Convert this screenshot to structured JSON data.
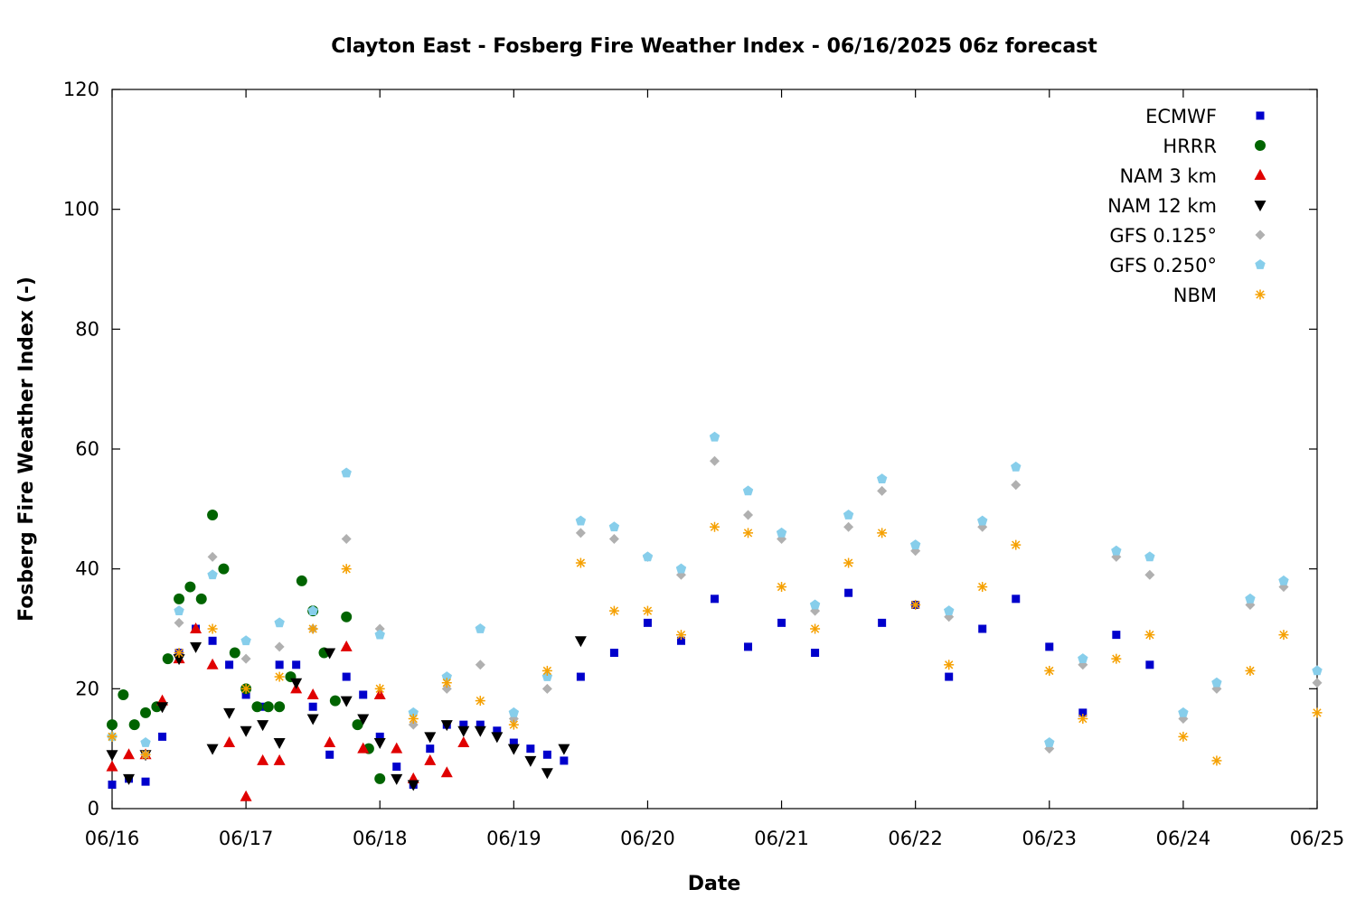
{
  "chart_data": {
    "type": "scatter",
    "title": "Clayton East - Fosberg Fire Weather Index - 06/16/2025 06z forecast",
    "xlabel": "Date",
    "ylabel": "Fosberg Fire Weather Index (-)",
    "xlim": [
      "2025-06-16T00:00",
      "2025-06-25T00:00"
    ],
    "ylim": [
      0,
      120
    ],
    "x_ticks": [
      "06/16",
      "06/17",
      "06/18",
      "06/19",
      "06/20",
      "06/21",
      "06/22",
      "06/23",
      "06/24",
      "06/25"
    ],
    "y_ticks": [
      0,
      20,
      40,
      60,
      80,
      100,
      120
    ],
    "grid": false,
    "legend_position": "top-right",
    "series": [
      {
        "name": "ECMWF",
        "marker": "square",
        "color": "#0000cc",
        "x": [
          "06/16 00:00",
          "06/16 03:00",
          "06/16 06:00",
          "06/16 09:00",
          "06/16 12:00",
          "06/16 15:00",
          "06/16 18:00",
          "06/16 21:00",
          "06/17 00:00",
          "06/17 03:00",
          "06/17 06:00",
          "06/17 09:00",
          "06/17 12:00",
          "06/17 15:00",
          "06/17 18:00",
          "06/17 21:00",
          "06/18 00:00",
          "06/18 03:00",
          "06/18 06:00",
          "06/18 09:00",
          "06/18 12:00",
          "06/18 15:00",
          "06/18 18:00",
          "06/18 21:00",
          "06/19 00:00",
          "06/19 03:00",
          "06/19 06:00",
          "06/19 09:00",
          "06/19 12:00",
          "06/19 18:00",
          "06/20 00:00",
          "06/20 06:00",
          "06/20 12:00",
          "06/20 18:00",
          "06/21 00:00",
          "06/21 06:00",
          "06/21 12:00",
          "06/21 18:00",
          "06/22 00:00",
          "06/22 06:00",
          "06/22 12:00",
          "06/22 18:00",
          "06/23 00:00",
          "06/23 06:00",
          "06/23 12:00",
          "06/23 18:00"
        ],
        "y": [
          4,
          5,
          4.5,
          12,
          26,
          30,
          28,
          24,
          19,
          17,
          24,
          24,
          17,
          9,
          22,
          19,
          12,
          7,
          4,
          10,
          14,
          14,
          14,
          13,
          11,
          10,
          9,
          8,
          22,
          26,
          31,
          28,
          35,
          27,
          31,
          26,
          36,
          31,
          34,
          22,
          30,
          35,
          27,
          16,
          29,
          24
        ]
      },
      {
        "name": "HRRR",
        "marker": "circle",
        "color": "#006400",
        "x": [
          "06/16 00:00",
          "06/16 02:00",
          "06/16 04:00",
          "06/16 06:00",
          "06/16 08:00",
          "06/16 10:00",
          "06/16 12:00",
          "06/16 14:00",
          "06/16 16:00",
          "06/16 18:00",
          "06/16 20:00",
          "06/16 22:00",
          "06/17 00:00",
          "06/17 02:00",
          "06/17 04:00",
          "06/17 06:00",
          "06/17 08:00",
          "06/17 10:00",
          "06/17 12:00",
          "06/17 14:00",
          "06/17 16:00",
          "06/17 18:00",
          "06/17 20:00",
          "06/17 22:00",
          "06/18 00:00"
        ],
        "y": [
          14,
          19,
          14,
          16,
          17,
          25,
          35,
          37,
          35,
          49,
          40,
          26,
          20,
          17,
          17,
          17,
          22,
          38,
          33,
          26,
          18,
          32,
          14,
          10,
          5
        ]
      },
      {
        "name": "NAM 3 km",
        "marker": "triangle-up",
        "color": "#e00000",
        "x": [
          "06/16 00:00",
          "06/16 03:00",
          "06/16 06:00",
          "06/16 09:00",
          "06/16 12:00",
          "06/16 15:00",
          "06/16 18:00",
          "06/16 21:00",
          "06/17 00:00",
          "06/17 03:00",
          "06/17 06:00",
          "06/17 09:00",
          "06/17 12:00",
          "06/17 15:00",
          "06/17 18:00",
          "06/17 21:00",
          "06/18 00:00",
          "06/18 03:00",
          "06/18 06:00",
          "06/18 09:00",
          "06/18 12:00",
          "06/18 15:00"
        ],
        "y": [
          7,
          9,
          9,
          18,
          25,
          30,
          24,
          11,
          2,
          8,
          8,
          20,
          19,
          11,
          27,
          10,
          19,
          10,
          5,
          8,
          6,
          11
        ]
      },
      {
        "name": "NAM 12 km",
        "marker": "triangle-down",
        "color": "#000000",
        "x": [
          "06/16 00:00",
          "06/16 03:00",
          "06/16 06:00",
          "06/16 09:00",
          "06/16 12:00",
          "06/16 15:00",
          "06/16 18:00",
          "06/16 21:00",
          "06/17 00:00",
          "06/17 03:00",
          "06/17 06:00",
          "06/17 09:00",
          "06/17 12:00",
          "06/17 15:00",
          "06/17 18:00",
          "06/17 21:00",
          "06/18 00:00",
          "06/18 03:00",
          "06/18 06:00",
          "06/18 09:00",
          "06/18 12:00",
          "06/18 15:00",
          "06/18 18:00",
          "06/18 21:00",
          "06/19 00:00",
          "06/19 03:00",
          "06/19 06:00",
          "06/19 09:00",
          "06/19 12:00"
        ],
        "y": [
          9,
          5,
          9,
          17,
          25,
          27,
          10,
          16,
          13,
          14,
          11,
          21,
          15,
          26,
          18,
          15,
          11,
          5,
          4,
          12,
          14,
          13,
          13,
          12,
          10,
          8,
          6,
          10,
          28
        ]
      },
      {
        "name": "GFS 0.125°",
        "marker": "diamond",
        "color": "#b0b0b0",
        "x": [
          "06/16 00:00",
          "06/16 06:00",
          "06/16 12:00",
          "06/16 18:00",
          "06/17 00:00",
          "06/17 06:00",
          "06/17 12:00",
          "06/17 18:00",
          "06/18 00:00",
          "06/18 06:00",
          "06/18 12:00",
          "06/18 18:00",
          "06/19 00:00",
          "06/19 06:00",
          "06/19 12:00",
          "06/19 18:00",
          "06/20 00:00",
          "06/20 06:00",
          "06/20 12:00",
          "06/20 18:00",
          "06/21 00:00",
          "06/21 06:00",
          "06/21 12:00",
          "06/21 18:00",
          "06/22 00:00",
          "06/22 06:00",
          "06/22 12:00",
          "06/22 18:00",
          "06/23 00:00",
          "06/23 06:00",
          "06/23 12:00",
          "06/23 18:00",
          "06/24 00:00",
          "06/24 06:00",
          "06/24 12:00",
          "06/24 18:00",
          "06/25 00:00"
        ],
        "y": [
          12,
          9,
          31,
          42,
          25,
          27,
          30,
          45,
          30,
          14,
          20,
          24,
          15,
          20,
          46,
          45,
          42,
          39,
          58,
          49,
          45,
          33,
          47,
          53,
          43,
          32,
          47,
          54,
          10,
          24,
          42,
          39,
          15,
          20,
          34,
          37,
          21
        ]
      },
      {
        "name": "GFS 0.250°",
        "marker": "pentagon",
        "color": "#87ceeb",
        "x": [
          "06/16 00:00",
          "06/16 06:00",
          "06/16 12:00",
          "06/16 18:00",
          "06/17 00:00",
          "06/17 06:00",
          "06/17 12:00",
          "06/17 18:00",
          "06/18 00:00",
          "06/18 06:00",
          "06/18 12:00",
          "06/18 18:00",
          "06/19 00:00",
          "06/19 06:00",
          "06/19 12:00",
          "06/19 18:00",
          "06/20 00:00",
          "06/20 06:00",
          "06/20 12:00",
          "06/20 18:00",
          "06/21 00:00",
          "06/21 06:00",
          "06/21 12:00",
          "06/21 18:00",
          "06/22 00:00",
          "06/22 06:00",
          "06/22 12:00",
          "06/22 18:00",
          "06/23 00:00",
          "06/23 06:00",
          "06/23 12:00",
          "06/23 18:00",
          "06/24 00:00",
          "06/24 06:00",
          "06/24 12:00",
          "06/24 18:00",
          "06/25 00:00"
        ],
        "y": [
          12,
          11,
          33,
          39,
          28,
          31,
          33,
          56,
          29,
          16,
          22,
          30,
          16,
          22,
          48,
          47,
          42,
          40,
          62,
          53,
          46,
          34,
          49,
          55,
          44,
          33,
          48,
          57,
          11,
          25,
          43,
          42,
          16,
          21,
          35,
          38,
          23
        ]
      },
      {
        "name": "NBM",
        "marker": "asterisk",
        "color": "#f5a000",
        "x": [
          "06/16 00:00",
          "06/16 06:00",
          "06/16 12:00",
          "06/16 18:00",
          "06/17 00:00",
          "06/17 06:00",
          "06/17 12:00",
          "06/17 18:00",
          "06/18 00:00",
          "06/18 06:00",
          "06/18 12:00",
          "06/18 18:00",
          "06/19 00:00",
          "06/19 06:00",
          "06/19 12:00",
          "06/19 18:00",
          "06/20 00:00",
          "06/20 06:00",
          "06/20 12:00",
          "06/20 18:00",
          "06/21 00:00",
          "06/21 06:00",
          "06/21 12:00",
          "06/21 18:00",
          "06/22 00:00",
          "06/22 06:00",
          "06/22 12:00",
          "06/22 18:00",
          "06/23 00:00",
          "06/23 06:00",
          "06/23 12:00",
          "06/23 18:00",
          "06/24 00:00",
          "06/24 06:00",
          "06/24 12:00",
          "06/24 18:00",
          "06/25 00:00"
        ],
        "y": [
          12,
          9,
          26,
          30,
          20,
          22,
          30,
          40,
          20,
          15,
          21,
          18,
          14,
          23,
          41,
          33,
          33,
          29,
          47,
          46,
          37,
          30,
          41,
          46,
          34,
          24,
          37,
          44,
          23,
          15,
          25,
          29,
          12,
          8,
          23,
          29,
          16
        ]
      }
    ]
  }
}
